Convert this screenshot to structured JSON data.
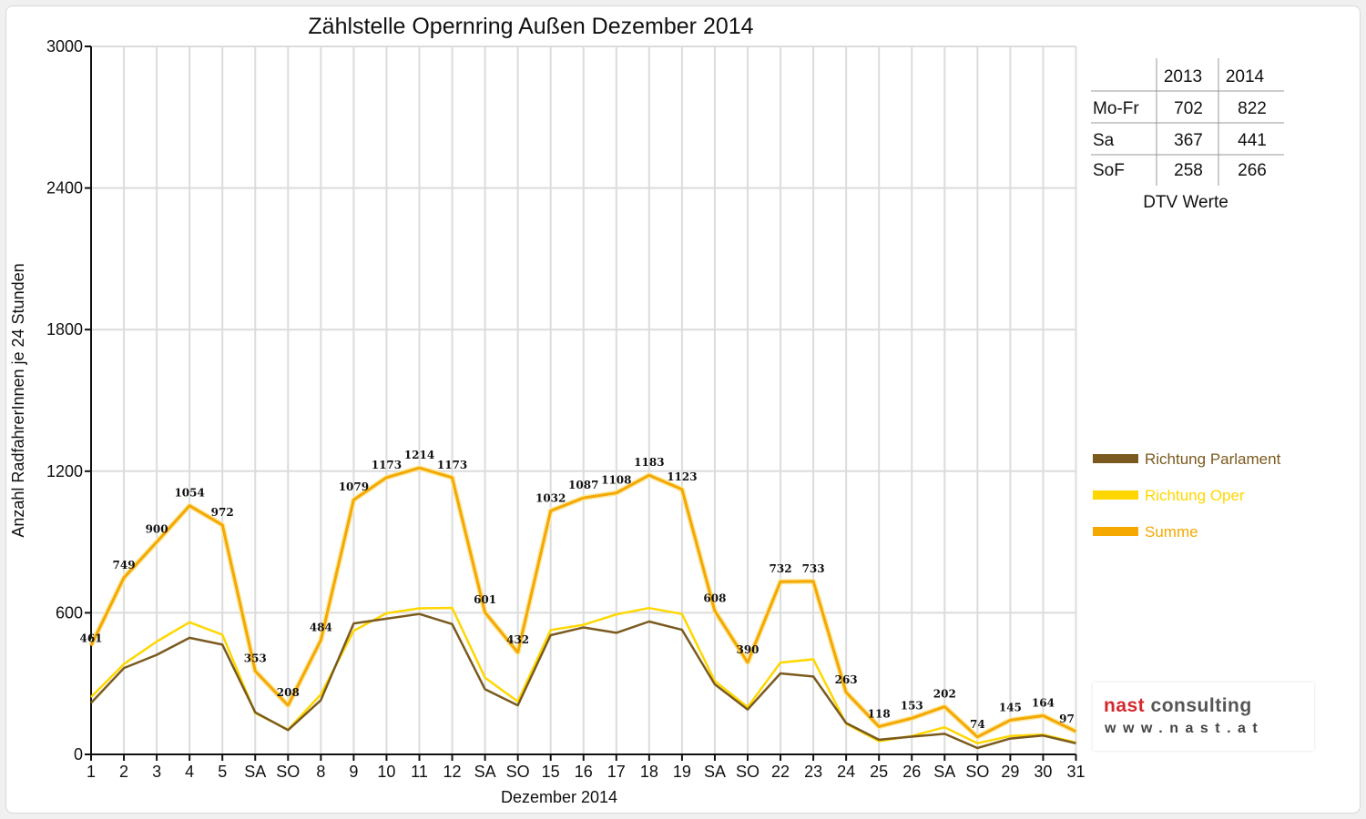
{
  "chart_data": {
    "type": "line",
    "title": "Zählstelle Opernring Außen Dezember 2014",
    "xlabel": "Dezember 2014",
    "ylabel": "Anzahl RadfahrerInnen je 24 Stunden",
    "ylim": [
      0,
      3000
    ],
    "yticks": [
      "0",
      "600",
      "1200",
      "1800",
      "2400",
      "3000"
    ],
    "grid": true,
    "legend_position": "right",
    "categories": [
      "1",
      "2",
      "3",
      "4",
      "5",
      "SA",
      "SO",
      "8",
      "9",
      "10",
      "11",
      "12",
      "SA",
      "SO",
      "15",
      "16",
      "17",
      "18",
      "19",
      "SA",
      "SO",
      "22",
      "23",
      "24",
      "25",
      "26",
      "SA",
      "SO",
      "29",
      "30",
      "31"
    ],
    "red_categories": [
      6,
      7,
      13,
      20,
      24,
      25,
      27
    ],
    "series": [
      {
        "name": "Richtung Parlament",
        "color": "#7a5a1e",
        "values": [
          218,
          366,
          422,
          494,
          465,
          178,
          103,
          230,
          555,
          575,
          595,
          552,
          276,
          208,
          505,
          538,
          515,
          563,
          528,
          297,
          190,
          343,
          330,
          133,
          62,
          75,
          87,
          27,
          67,
          80,
          47
        ]
      },
      {
        "name": "Richtung Oper",
        "color": "#ffd700",
        "values": [
          243,
          383,
          478,
          560,
          507,
          175,
          105,
          254,
          524,
          598,
          619,
          621,
          325,
          224,
          527,
          549,
          593,
          620,
          595,
          311,
          200,
          389,
          403,
          130,
          56,
          78,
          115,
          47,
          78,
          84,
          50
        ]
      },
      {
        "name": "Summe",
        "color": "#f5a800",
        "values": [
          461,
          749,
          900,
          1054,
          972,
          353,
          208,
          484,
          1079,
          1173,
          1214,
          1173,
          601,
          432,
          1032,
          1087,
          1108,
          1183,
          1123,
          608,
          390,
          732,
          733,
          263,
          118,
          153,
          202,
          74,
          145,
          164,
          97
        ]
      }
    ],
    "data_labels": [
      "461",
      "749",
      "900",
      "1054",
      "972",
      "353",
      "208",
      "484",
      "1079",
      "1173",
      "1214",
      "1173",
      "601",
      "432",
      "1032",
      "1087",
      "1108",
      "1183",
      "1123",
      "608",
      "390",
      "732",
      "733",
      "263",
      "118",
      "153",
      "202",
      "74",
      "145",
      "164",
      "97"
    ]
  },
  "dtv_table": {
    "headers": [
      "",
      "2013",
      "2014"
    ],
    "rows": [
      {
        "label": "Mo-Fr",
        "v2013": "702",
        "v2014": "822"
      },
      {
        "label": "Sa",
        "v2013": "367",
        "v2014": "441"
      },
      {
        "label": "SoF",
        "v2013": "258",
        "v2014": "266"
      }
    ],
    "caption": "DTV Werte"
  },
  "logo": {
    "name_part1": "nast",
    "name_part2": "consulting",
    "url": "www.nast.at"
  }
}
